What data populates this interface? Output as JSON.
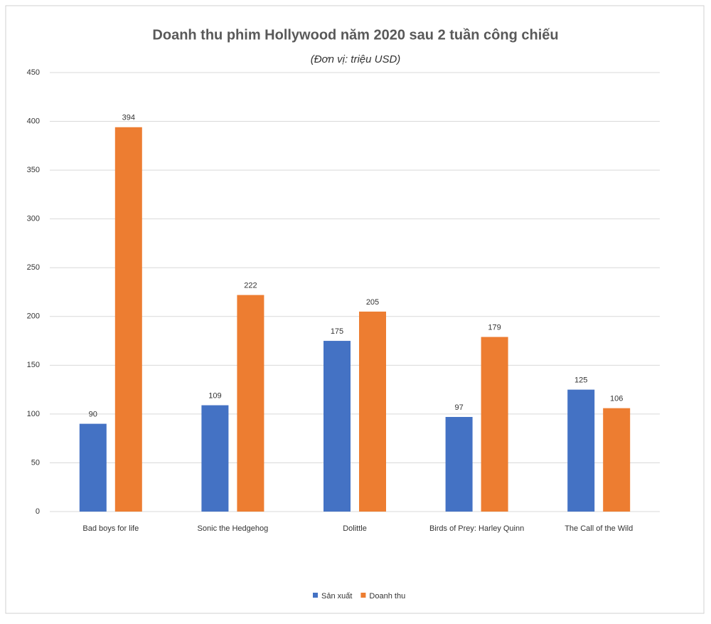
{
  "chart_data": {
    "type": "bar",
    "title": "Doanh thu phim Hollywood năm 2020 sau 2 tuần công chiếu",
    "subtitle": "(Đơn vị: triệu USD)",
    "categories": [
      "Bad boys for life",
      "Sonic the Hedgehog",
      "Dolittle",
      "Birds of Prey: Harley Quinn",
      "The Call of the Wild"
    ],
    "series": [
      {
        "name": "Sản xuất",
        "color": "#4472c4",
        "values": [
          90,
          109,
          175,
          97,
          125
        ]
      },
      {
        "name": "Doanh thu",
        "color": "#ed7d31",
        "values": [
          394,
          222,
          205,
          179,
          106
        ]
      }
    ],
    "ylim": [
      0,
      450
    ],
    "yticks": [
      0,
      50,
      100,
      150,
      200,
      250,
      300,
      350,
      400,
      450
    ],
    "grid": true,
    "legend": "bottom"
  }
}
